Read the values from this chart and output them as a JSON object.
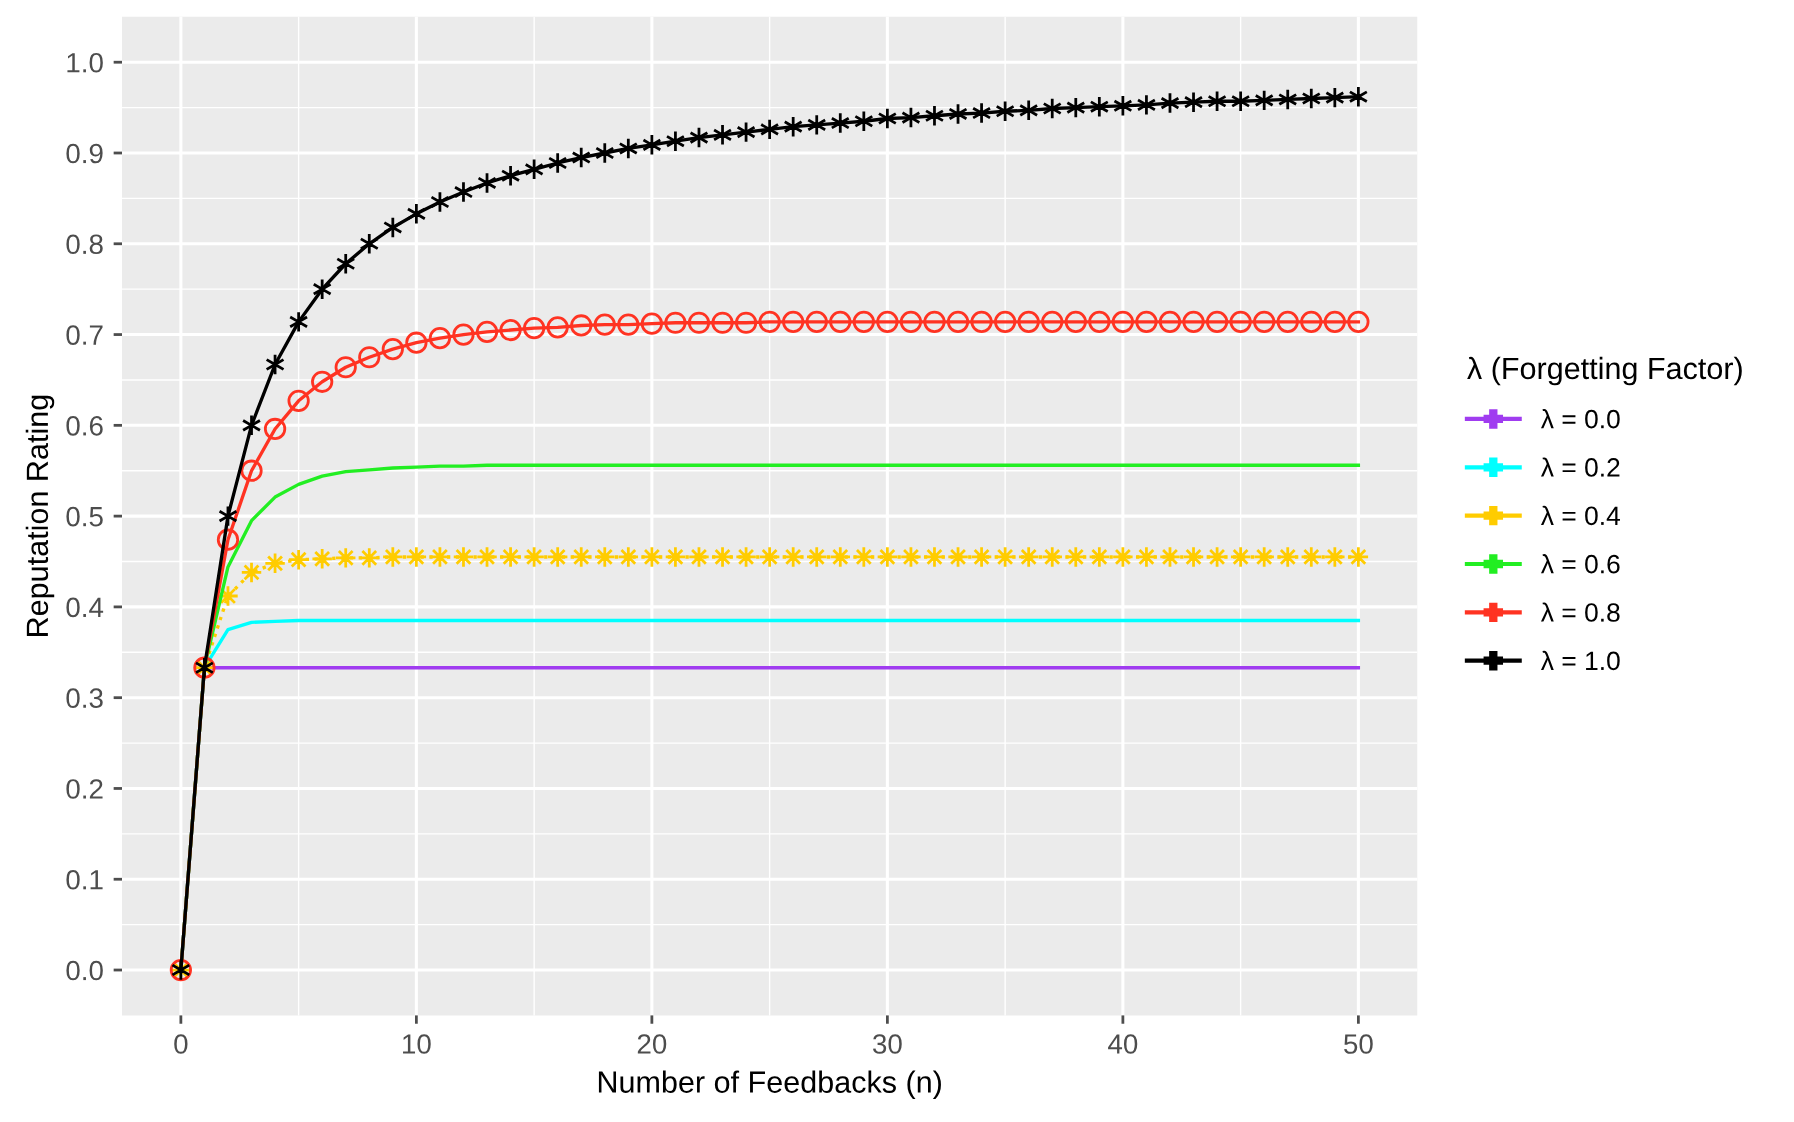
{
  "chart_data": {
    "type": "line",
    "xlabel": "Number of Feedbacks (n)",
    "ylabel": "Reputation Rating",
    "legend_title": "λ (Forgetting Factor)",
    "legend": "right",
    "grid": true,
    "xlim": [
      -2.5,
      52.5
    ],
    "xticks": [
      0,
      10,
      20,
      30,
      40,
      50
    ],
    "ylim": [
      -0.05,
      1.05
    ],
    "yticks": [
      {
        "value": 0,
        "label": "0.0"
      },
      0.1,
      0.2,
      0.3,
      0.4,
      0.5,
      0.6,
      0.7,
      0.8,
      0.9,
      {
        "value": 1,
        "label": "1.0"
      }
    ],
    "series": [
      {
        "name": "λ = 0.0",
        "color": "#a03cf0",
        "marker": "none",
        "x": [
          0,
          1,
          50
        ],
        "values": [
          0,
          0.333,
          0.333
        ]
      },
      {
        "name": "λ = 0.2",
        "color": "#00ffff",
        "marker": "none",
        "x": [
          0,
          1,
          2,
          3,
          4,
          5,
          50
        ],
        "values": [
          0,
          0.333,
          0.375,
          0.383,
          0.384,
          0.385,
          0.385
        ]
      },
      {
        "name": "λ = 0.4",
        "color": "#ffcc00",
        "marker": "star",
        "line_style": "dotted",
        "x": [
          0,
          1,
          2,
          3,
          4,
          5,
          6,
          7,
          8,
          9,
          10,
          11,
          12,
          13,
          14,
          15,
          16,
          17,
          18,
          19,
          20,
          21,
          22,
          23,
          24,
          25,
          26,
          27,
          28,
          29,
          30,
          31,
          32,
          33,
          34,
          35,
          36,
          37,
          38,
          39,
          40,
          41,
          42,
          43,
          44,
          45,
          46,
          47,
          48,
          49,
          50
        ],
        "values": [
          0,
          0.333,
          0.412,
          0.438,
          0.448,
          0.452,
          0.453,
          0.454,
          0.454,
          0.455,
          0.455,
          0.455,
          0.455,
          0.455,
          0.455,
          0.455,
          0.455,
          0.455,
          0.455,
          0.455,
          0.455,
          0.455,
          0.455,
          0.455,
          0.455,
          0.455,
          0.455,
          0.455,
          0.455,
          0.455,
          0.455,
          0.455,
          0.455,
          0.455,
          0.455,
          0.455,
          0.455,
          0.455,
          0.455,
          0.455,
          0.455,
          0.455,
          0.455,
          0.455,
          0.455,
          0.455,
          0.455,
          0.455,
          0.455,
          0.455,
          0.455
        ]
      },
      {
        "name": "λ = 0.6",
        "color": "#22ee22",
        "marker": "none",
        "x": [
          0,
          1,
          2,
          3,
          4,
          5,
          6,
          7,
          8,
          9,
          10,
          11,
          12,
          13,
          50
        ],
        "values": [
          0,
          0.333,
          0.444,
          0.495,
          0.521,
          0.535,
          0.544,
          0.549,
          0.551,
          0.553,
          0.554,
          0.555,
          0.555,
          0.556,
          0.556
        ]
      },
      {
        "name": "λ = 0.8",
        "color": "#ff3322",
        "marker": "circle",
        "x": [
          0,
          1,
          2,
          3,
          4,
          5,
          6,
          7,
          8,
          9,
          10,
          11,
          12,
          13,
          14,
          15,
          16,
          17,
          18,
          19,
          20,
          21,
          22,
          23,
          24,
          25,
          26,
          27,
          28,
          29,
          30,
          31,
          32,
          33,
          34,
          35,
          36,
          37,
          38,
          39,
          40,
          41,
          42,
          43,
          44,
          45,
          46,
          47,
          48,
          49,
          50
        ],
        "values": [
          0,
          0.333,
          0.474,
          0.55,
          0.596,
          0.627,
          0.648,
          0.664,
          0.675,
          0.684,
          0.691,
          0.696,
          0.7,
          0.703,
          0.705,
          0.707,
          0.708,
          0.71,
          0.711,
          0.711,
          0.712,
          0.713,
          0.713,
          0.713,
          0.713,
          0.714,
          0.714,
          0.714,
          0.714,
          0.714,
          0.714,
          0.714,
          0.714,
          0.714,
          0.714,
          0.714,
          0.714,
          0.714,
          0.714,
          0.714,
          0.714,
          0.714,
          0.714,
          0.714,
          0.714,
          0.714,
          0.714,
          0.714,
          0.714,
          0.714,
          0.714
        ]
      },
      {
        "name": "λ = 1.0",
        "color": "#000000",
        "marker": "cross",
        "x": [
          0,
          1,
          2,
          3,
          4,
          5,
          6,
          7,
          8,
          9,
          10,
          11,
          12,
          13,
          14,
          15,
          16,
          17,
          18,
          19,
          20,
          21,
          22,
          23,
          24,
          25,
          26,
          27,
          28,
          29,
          30,
          31,
          32,
          33,
          34,
          35,
          36,
          37,
          38,
          39,
          40,
          41,
          42,
          43,
          44,
          45,
          46,
          47,
          48,
          49,
          50
        ],
        "values": [
          0,
          0.333,
          0.5,
          0.6,
          0.667,
          0.714,
          0.75,
          0.778,
          0.8,
          0.818,
          0.833,
          0.846,
          0.857,
          0.867,
          0.875,
          0.882,
          0.889,
          0.895,
          0.9,
          0.905,
          0.909,
          0.913,
          0.917,
          0.92,
          0.923,
          0.926,
          0.929,
          0.931,
          0.933,
          0.935,
          0.938,
          0.939,
          0.941,
          0.943,
          0.944,
          0.946,
          0.947,
          0.949,
          0.95,
          0.951,
          0.952,
          0.953,
          0.955,
          0.956,
          0.957,
          0.957,
          0.958,
          0.959,
          0.96,
          0.961,
          0.962
        ]
      }
    ]
  }
}
